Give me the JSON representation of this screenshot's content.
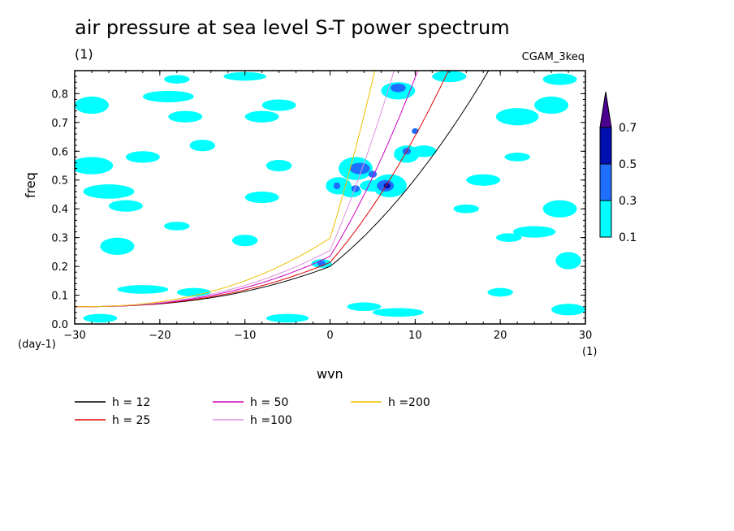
{
  "chart_data": {
    "type": "heatmap",
    "title": "air pressure at sea level S-T power spectrum",
    "subtitle": "(1)",
    "source_label": "CGAM_3keq",
    "xlabel": "wvn",
    "xunit": "(1)",
    "ylabel": "freq",
    "yunit": "(day-1)",
    "xlim": [
      -30,
      30
    ],
    "ylim": [
      0,
      0.88
    ],
    "xticks": [
      -30,
      -20,
      -10,
      0,
      10,
      20,
      30
    ],
    "yticks": [
      0.0,
      0.1,
      0.2,
      0.3,
      0.4,
      0.5,
      0.6,
      0.7,
      0.8
    ],
    "colorbar": {
      "levels": [
        0.1,
        0.3,
        0.5,
        0.7
      ],
      "colors": [
        "#00ffff",
        "#1f6fff",
        "#0010b0",
        "#4b0090"
      ]
    },
    "patches": [
      {
        "x": -28,
        "y": 0.55,
        "rx": 2.5,
        "ry": 0.03,
        "level": 0
      },
      {
        "x": -26,
        "y": 0.46,
        "rx": 3,
        "ry": 0.025,
        "level": 0
      },
      {
        "x": -22,
        "y": 0.58,
        "rx": 2,
        "ry": 0.02,
        "level": 0
      },
      {
        "x": -24,
        "y": 0.41,
        "rx": 2,
        "ry": 0.02,
        "level": 0
      },
      {
        "x": -19,
        "y": 0.79,
        "rx": 3,
        "ry": 0.02,
        "level": 0
      },
      {
        "x": -18,
        "y": 0.85,
        "rx": 1.5,
        "ry": 0.015,
        "level": 0
      },
      {
        "x": -28,
        "y": 0.76,
        "rx": 2,
        "ry": 0.03,
        "level": 0
      },
      {
        "x": -17,
        "y": 0.72,
        "rx": 2,
        "ry": 0.02,
        "level": 0
      },
      {
        "x": -10,
        "y": 0.86,
        "rx": 2.5,
        "ry": 0.015,
        "level": 0
      },
      {
        "x": -8,
        "y": 0.72,
        "rx": 2,
        "ry": 0.02,
        "level": 0
      },
      {
        "x": -6,
        "y": 0.76,
        "rx": 2,
        "ry": 0.02,
        "level": 0
      },
      {
        "x": -15,
        "y": 0.62,
        "rx": 1.5,
        "ry": 0.02,
        "level": 0
      },
      {
        "x": -25,
        "y": 0.27,
        "rx": 2,
        "ry": 0.03,
        "level": 0
      },
      {
        "x": -22,
        "y": 0.12,
        "rx": 3,
        "ry": 0.015,
        "level": 0
      },
      {
        "x": -16,
        "y": 0.11,
        "rx": 2,
        "ry": 0.015,
        "level": 0
      },
      {
        "x": -8,
        "y": 0.44,
        "rx": 2,
        "ry": 0.02,
        "level": 0
      },
      {
        "x": -6,
        "y": 0.55,
        "rx": 1.5,
        "ry": 0.02,
        "level": 0
      },
      {
        "x": -18,
        "y": 0.34,
        "rx": 1.5,
        "ry": 0.015,
        "level": 0
      },
      {
        "x": -10,
        "y": 0.29,
        "rx": 1.5,
        "ry": 0.02,
        "level": 0
      },
      {
        "x": -27,
        "y": 0.02,
        "rx": 2,
        "ry": 0.015,
        "level": 0
      },
      {
        "x": -5,
        "y": 0.02,
        "rx": 2.5,
        "ry": 0.015,
        "level": 0
      },
      {
        "x": 4,
        "y": 0.06,
        "rx": 2,
        "ry": 0.015,
        "level": 0
      },
      {
        "x": 8,
        "y": 0.04,
        "rx": 3,
        "ry": 0.015,
        "level": 0
      },
      {
        "x": -1,
        "y": 0.21,
        "rx": 1.2,
        "ry": 0.015,
        "level": 0
      },
      {
        "x": 1,
        "y": 0.48,
        "rx": 1.5,
        "ry": 0.03,
        "level": 0
      },
      {
        "x": 3,
        "y": 0.54,
        "rx": 2,
        "ry": 0.04,
        "level": 0
      },
      {
        "x": 2.5,
        "y": 0.46,
        "rx": 1.2,
        "ry": 0.02,
        "level": 0
      },
      {
        "x": 5,
        "y": 0.48,
        "rx": 1.5,
        "ry": 0.02,
        "level": 0
      },
      {
        "x": 7,
        "y": 0.48,
        "rx": 2,
        "ry": 0.04,
        "level": 0
      },
      {
        "x": 9,
        "y": 0.59,
        "rx": 1.5,
        "ry": 0.03,
        "level": 0
      },
      {
        "x": 8,
        "y": 0.81,
        "rx": 2,
        "ry": 0.03,
        "level": 0
      },
      {
        "x": 11,
        "y": 0.6,
        "rx": 1.5,
        "ry": 0.02,
        "level": 0
      },
      {
        "x": 14,
        "y": 0.86,
        "rx": 2,
        "ry": 0.02,
        "level": 0
      },
      {
        "x": 18,
        "y": 0.5,
        "rx": 2,
        "ry": 0.02,
        "level": 0
      },
      {
        "x": 22,
        "y": 0.72,
        "rx": 2.5,
        "ry": 0.03,
        "level": 0
      },
      {
        "x": 26,
        "y": 0.76,
        "rx": 2,
        "ry": 0.03,
        "level": 0
      },
      {
        "x": 27,
        "y": 0.4,
        "rx": 2,
        "ry": 0.03,
        "level": 0
      },
      {
        "x": 24,
        "y": 0.32,
        "rx": 2.5,
        "ry": 0.02,
        "level": 0
      },
      {
        "x": 28,
        "y": 0.22,
        "rx": 1.5,
        "ry": 0.03,
        "level": 0
      },
      {
        "x": 21,
        "y": 0.3,
        "rx": 1.5,
        "ry": 0.015,
        "level": 0
      },
      {
        "x": 20,
        "y": 0.11,
        "rx": 1.5,
        "ry": 0.015,
        "level": 0
      },
      {
        "x": 28,
        "y": 0.05,
        "rx": 2,
        "ry": 0.02,
        "level": 0
      },
      {
        "x": 27,
        "y": 0.85,
        "rx": 2,
        "ry": 0.02,
        "level": 0
      },
      {
        "x": 22,
        "y": 0.58,
        "rx": 1.5,
        "ry": 0.015,
        "level": 0
      },
      {
        "x": 16,
        "y": 0.4,
        "rx": 1.5,
        "ry": 0.015,
        "level": 0
      },
      {
        "x": 3.5,
        "y": 0.54,
        "rx": 1.2,
        "ry": 0.02,
        "level": 1
      },
      {
        "x": 5,
        "y": 0.52,
        "rx": 0.5,
        "ry": 0.012,
        "level": 1
      },
      {
        "x": 6.5,
        "y": 0.48,
        "rx": 1,
        "ry": 0.02,
        "level": 1
      },
      {
        "x": 3,
        "y": 0.47,
        "rx": 0.5,
        "ry": 0.012,
        "level": 1
      },
      {
        "x": 9,
        "y": 0.6,
        "rx": 0.5,
        "ry": 0.012,
        "level": 1
      },
      {
        "x": 8,
        "y": 0.82,
        "rx": 0.9,
        "ry": 0.015,
        "level": 1
      },
      {
        "x": 10,
        "y": 0.67,
        "rx": 0.4,
        "ry": 0.01,
        "level": 1
      },
      {
        "x": -1,
        "y": 0.21,
        "rx": 0.5,
        "ry": 0.01,
        "level": 1
      },
      {
        "x": 0.8,
        "y": 0.48,
        "rx": 0.4,
        "ry": 0.012,
        "level": 1
      },
      {
        "x": 6.7,
        "y": 0.48,
        "rx": 0.4,
        "ry": 0.01,
        "level": 2
      }
    ],
    "series": [
      {
        "name": "h = 12",
        "h": 12,
        "color": "#000000"
      },
      {
        "name": "h = 25",
        "h": 25,
        "color": "#e00000"
      },
      {
        "name": "h = 50",
        "h": 50,
        "color": "#d000c0"
      },
      {
        "name": "h =100",
        "h": 100,
        "color": "#e090e0"
      },
      {
        "name": "h =200",
        "h": 200,
        "color": "#f0c000"
      }
    ]
  }
}
